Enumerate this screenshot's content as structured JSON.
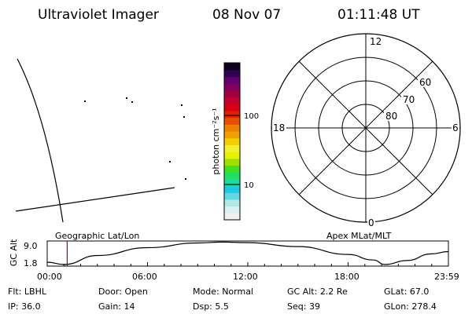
{
  "header": {
    "instrument": "Ultraviolet Imager",
    "date": "08 Nov 07",
    "time": "01:11:48 UT"
  },
  "colorbar": {
    "label": "photon cm⁻²s⁻¹",
    "ticks": [
      {
        "label": "100",
        "value": 100
      },
      {
        "label": "10",
        "value": 10
      }
    ],
    "colors": [
      "#f0f0f0",
      "#d8f0f0",
      "#b0e8e8",
      "#60d8e0",
      "#20c8e8",
      "#20d8a0",
      "#20e060",
      "#40e020",
      "#a0e000",
      "#e8f000",
      "#f0f030",
      "#f0d000",
      "#f0a000",
      "#f08000",
      "#e85000",
      "#e02000",
      "#d80010",
      "#c00030",
      "#a00040",
      "#800060",
      "#600070",
      "#300050",
      "#100020"
    ]
  },
  "polar": {
    "mlt_labels": [
      "12",
      "18",
      "6",
      "0"
    ],
    "lat_labels": [
      "60",
      "70",
      "80"
    ]
  },
  "map_panel": {
    "dots": [
      [
        107,
        128
      ],
      [
        160,
        124
      ],
      [
        167,
        129
      ],
      [
        230,
        133
      ],
      [
        233,
        148
      ],
      [
        215,
        205
      ],
      [
        235,
        227
      ]
    ]
  },
  "orbit": {
    "left_label": "Geographic Lat/Lon",
    "right_label": "Apex MLat/MLT",
    "ylabel": "GC Alt",
    "yticks": [
      "9.0",
      "1.8"
    ],
    "xticks": [
      "00:00",
      "06:00",
      "12:00",
      "18:00",
      "23:59"
    ],
    "marker_time": "01:11:48",
    "series": [
      [
        0,
        2.4
      ],
      [
        1.0,
        1.6
      ],
      [
        3,
        4.8
      ],
      [
        6,
        7.6
      ],
      [
        9,
        9.3
      ],
      [
        10.5,
        9.6
      ],
      [
        12,
        9.4
      ],
      [
        15,
        8.0
      ],
      [
        18,
        5.2
      ],
      [
        19.5,
        3.2
      ],
      [
        20.2,
        1.6
      ],
      [
        21.5,
        3.0
      ],
      [
        23,
        5.4
      ],
      [
        23.98,
        6.2
      ]
    ]
  },
  "footer": {
    "row1": [
      {
        "key": "Flt:",
        "value": "LBHL"
      },
      {
        "key": "Door:",
        "value": "Open"
      },
      {
        "key": "Mode:",
        "value": "Normal"
      },
      {
        "key": "GC Alt:",
        "value": "2.2 Re"
      },
      {
        "key": "GLat:",
        "value": "67.0"
      }
    ],
    "row2": [
      {
        "key": "IP:",
        "value": "36.0"
      },
      {
        "key": "Gain:",
        "value": "14"
      },
      {
        "key": "Dsp:",
        "value": "5.5"
      },
      {
        "key": "Seq:",
        "value": "39"
      },
      {
        "key": "GLon:",
        "value": "278.4"
      }
    ]
  }
}
